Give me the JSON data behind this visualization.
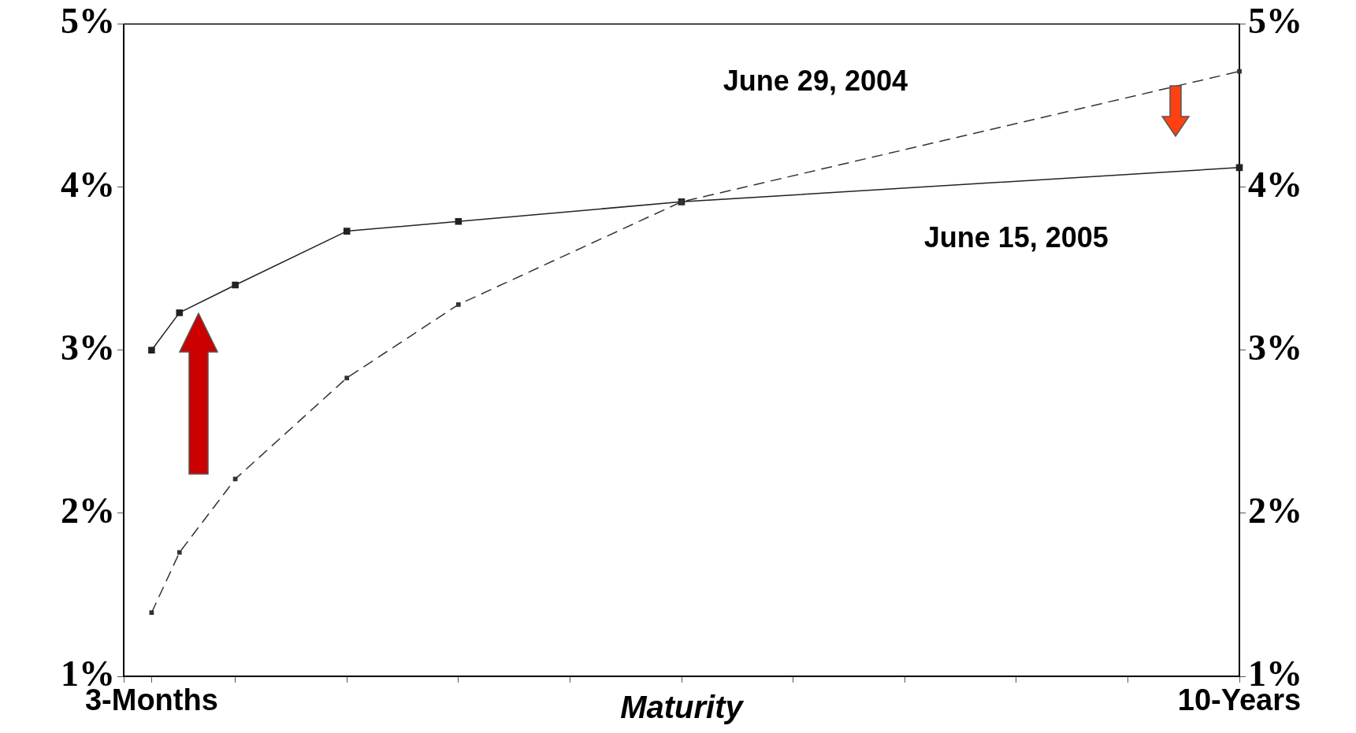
{
  "chart_data": {
    "type": "line",
    "xlabel": "Maturity",
    "categories": [
      null,
      "3-Months",
      null,
      null,
      null,
      null,
      null,
      null,
      null,
      null,
      null,
      null,
      null,
      null,
      null,
      null,
      null,
      null,
      null,
      null,
      null,
      null,
      null,
      null,
      null,
      null,
      null,
      null,
      null,
      null,
      null,
      null,
      null,
      null,
      null,
      null,
      null,
      null,
      null,
      null,
      "10-Years"
    ],
    "ylim": [
      1,
      5
    ],
    "yticks": [
      {
        "value": 1,
        "label": "1%"
      },
      {
        "value": 2,
        "label": "2%"
      },
      {
        "value": 3,
        "label": "3%"
      },
      {
        "value": 4,
        "label": "4%"
      },
      {
        "value": 5,
        "label": "5%"
      }
    ],
    "y2lim": [
      1,
      5
    ],
    "y2ticks": [
      {
        "value": 1,
        "label": "1%"
      },
      {
        "value": 2,
        "label": "2%"
      },
      {
        "value": 3,
        "label": "3%"
      },
      {
        "value": 4,
        "label": "4%"
      },
      {
        "value": 5,
        "label": "5%"
      }
    ],
    "grid": false,
    "legend": false,
    "marker": "square",
    "series": [
      {
        "name": "June 29, 2004",
        "color": "#333333",
        "line_style": "dashed",
        "values": [
          null,
          1.39,
          1.76,
          null,
          2.21,
          null,
          null,
          null,
          2.83,
          null,
          null,
          null,
          3.28,
          null,
          null,
          null,
          null,
          null,
          null,
          null,
          3.91,
          null,
          null,
          null,
          null,
          null,
          null,
          null,
          null,
          null,
          null,
          null,
          null,
          null,
          null,
          null,
          null,
          null,
          null,
          null,
          4.71
        ]
      },
      {
        "name": "June 15, 2005",
        "color": "#222222",
        "line_style": "solid",
        "values": [
          null,
          3.0,
          3.23,
          null,
          3.4,
          null,
          null,
          null,
          3.73,
          null,
          null,
          null,
          3.79,
          null,
          null,
          null,
          null,
          null,
          null,
          null,
          3.91,
          null,
          null,
          null,
          null,
          null,
          null,
          null,
          null,
          null,
          null,
          null,
          null,
          null,
          null,
          null,
          null,
          null,
          null,
          null,
          4.12
        ]
      }
    ]
  }
}
